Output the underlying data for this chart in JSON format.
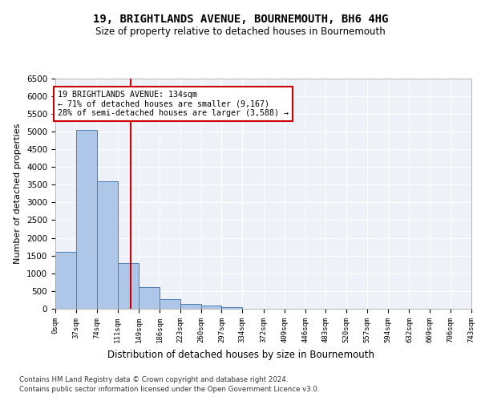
{
  "title": "19, BRIGHTLANDS AVENUE, BOURNEMOUTH, BH6 4HG",
  "subtitle": "Size of property relative to detached houses in Bournemouth",
  "xlabel": "Distribution of detached houses by size in Bournemouth",
  "ylabel": "Number of detached properties",
  "bin_edges": [
    0,
    37,
    74,
    111,
    149,
    186,
    223,
    260,
    297,
    334,
    372,
    409,
    446,
    483,
    520,
    557,
    594,
    632,
    669,
    706,
    743
  ],
  "bar_heights": [
    1600,
    5050,
    3600,
    1300,
    600,
    280,
    140,
    80,
    40,
    10,
    5,
    2,
    1,
    0,
    0,
    0,
    0,
    0,
    0,
    0
  ],
  "bar_color": "#aec6e8",
  "bar_edge_color": "#4a7fb5",
  "property_size": 134,
  "property_line_color": "#cc0000",
  "annotation_text": "19 BRIGHTLANDS AVENUE: 134sqm\n← 71% of detached houses are smaller (9,167)\n28% of semi-detached houses are larger (3,588) →",
  "annotation_box_color": "#cc0000",
  "ylim": [
    0,
    6500
  ],
  "yticks": [
    0,
    500,
    1000,
    1500,
    2000,
    2500,
    3000,
    3500,
    4000,
    4500,
    5000,
    5500,
    6000,
    6500
  ],
  "tick_labels": [
    "0sqm",
    "37sqm",
    "74sqm",
    "111sqm",
    "149sqm",
    "186sqm",
    "223sqm",
    "260sqm",
    "297sqm",
    "334sqm",
    "372sqm",
    "409sqm",
    "446sqm",
    "483sqm",
    "520sqm",
    "557sqm",
    "594sqm",
    "632sqm",
    "669sqm",
    "706sqm",
    "743sqm"
  ],
  "footer_line1": "Contains HM Land Registry data © Crown copyright and database right 2024.",
  "footer_line2": "Contains public sector information licensed under the Open Government Licence v3.0.",
  "background_color": "#eef2f8",
  "grid_color": "#ffffff",
  "fig_bg_color": "#ffffff"
}
